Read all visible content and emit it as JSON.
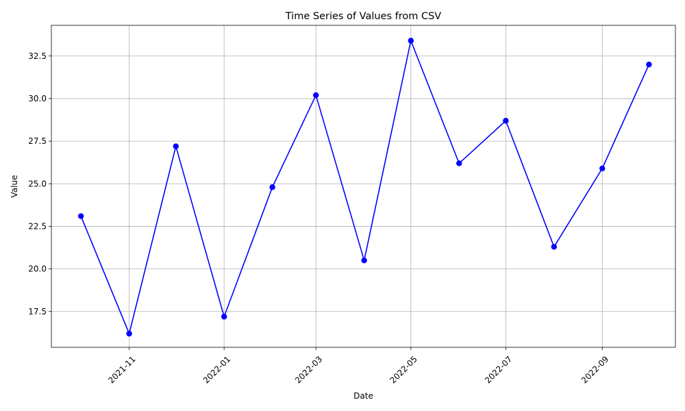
{
  "chart_data": {
    "type": "line",
    "title": "Time Series of Values from CSV",
    "xlabel": "Date",
    "ylabel": "Value",
    "x_scale": "date",
    "grid": true,
    "legend": "none",
    "line_color": "#0000ff",
    "marker": "circle",
    "xlim": [
      "2021-09-12",
      "2022-10-18"
    ],
    "ylim": [
      15.4,
      34.3
    ],
    "x_ticks": [
      {
        "date": "2021-11-01",
        "label": "2021-11"
      },
      {
        "date": "2022-01-01",
        "label": "2022-01"
      },
      {
        "date": "2022-03-01",
        "label": "2022-03"
      },
      {
        "date": "2022-05-01",
        "label": "2022-05"
      },
      {
        "date": "2022-07-01",
        "label": "2022-07"
      },
      {
        "date": "2022-09-01",
        "label": "2022-09"
      }
    ],
    "y_ticks": [
      {
        "value": 17.5,
        "label": "17.5"
      },
      {
        "value": 20.0,
        "label": "20.0"
      },
      {
        "value": 22.5,
        "label": "22.5"
      },
      {
        "value": 25.0,
        "label": "25.0"
      },
      {
        "value": 27.5,
        "label": "27.5"
      },
      {
        "value": 30.0,
        "label": "30.0"
      },
      {
        "value": 32.5,
        "label": "32.5"
      }
    ],
    "series": [
      {
        "x": [
          "2021-10-01",
          "2021-11-01",
          "2021-12-01",
          "2022-01-01",
          "2022-02-01",
          "2022-03-01",
          "2022-04-01",
          "2022-05-01",
          "2022-06-01",
          "2022-07-01",
          "2022-08-01",
          "2022-09-01",
          "2022-10-01"
        ],
        "values": [
          23.1,
          16.2,
          27.2,
          17.2,
          24.8,
          30.2,
          20.5,
          33.4,
          26.2,
          28.7,
          21.3,
          25.9,
          32.0
        ]
      }
    ]
  }
}
